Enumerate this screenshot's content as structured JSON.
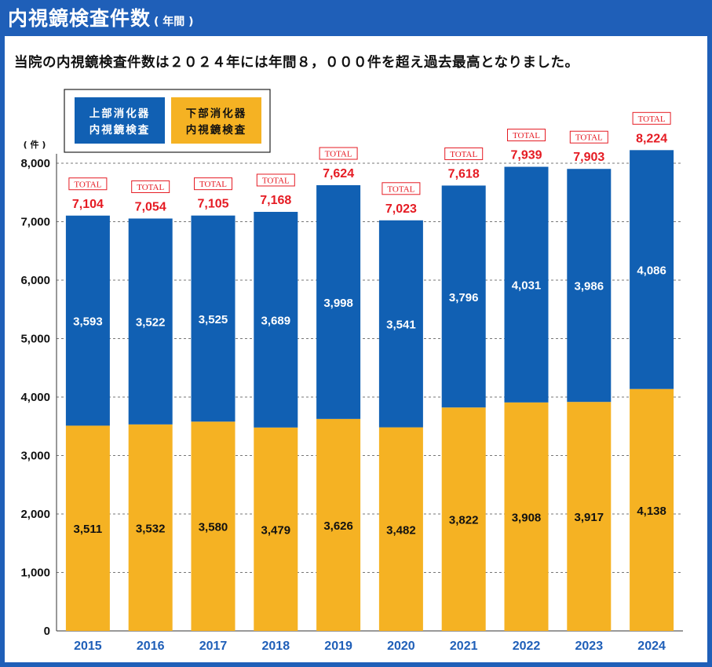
{
  "header": {
    "title": "内視鏡検査件数",
    "title_sub": "( 年間 )"
  },
  "subtitle": "当院の内視鏡検査件数は２０２４年には年間８，０００件を超え過去最高となりました。",
  "colors": {
    "frame": "#1f5fb8",
    "upper": "#1160b3",
    "lower": "#f5b223",
    "total_text": "#e51b23"
  },
  "chart_data": {
    "type": "bar",
    "stacked": true,
    "categories": [
      "2015",
      "2016",
      "2017",
      "2018",
      "2019",
      "2020",
      "2021",
      "2022",
      "2023",
      "2024"
    ],
    "series": [
      {
        "name": "下部消化器 内視鏡検査",
        "values": [
          3511,
          3532,
          3580,
          3479,
          3626,
          3482,
          3822,
          3908,
          3917,
          4138
        ],
        "labels": [
          "3,511",
          "3,532",
          "3,580",
          "3,479",
          "3,626",
          "3,482",
          "3,822",
          "3,908",
          "3,917",
          "4,138"
        ],
        "color": "#f5b223"
      },
      {
        "name": "上部消化器 内視鏡検査",
        "values": [
          3593,
          3522,
          3525,
          3689,
          3998,
          3541,
          3796,
          4031,
          3986,
          4086
        ],
        "labels": [
          "3,593",
          "3,522",
          "3,525",
          "3,689",
          "3,998",
          "3,541",
          "3,796",
          "4,031",
          "3,986",
          "4,086"
        ],
        "color": "#1160b3"
      }
    ],
    "totals": [
      7104,
      7054,
      7105,
      7168,
      7624,
      7023,
      7618,
      7939,
      7903,
      8224
    ],
    "total_labels": [
      "7,104",
      "7,054",
      "7,105",
      "7,168",
      "7,624",
      "7,023",
      "7,618",
      "7,939",
      "7,903",
      "8,224"
    ],
    "total_tag": "TOTAL",
    "ylim": [
      0,
      8000
    ],
    "yticks": [
      "0",
      "1,000",
      "2,000",
      "3,000",
      "4,000",
      "5,000",
      "6,000",
      "7,000",
      "8,000"
    ],
    "ylabel": "( 件 )",
    "grid": true,
    "legend": {
      "placement": "top-left",
      "entries": [
        {
          "line1": "上部消化器",
          "line2": "内視鏡検査",
          "color": "#1160b3"
        },
        {
          "line1": "下部消化器",
          "line2": "内視鏡検査",
          "color": "#f5b223"
        }
      ]
    }
  }
}
